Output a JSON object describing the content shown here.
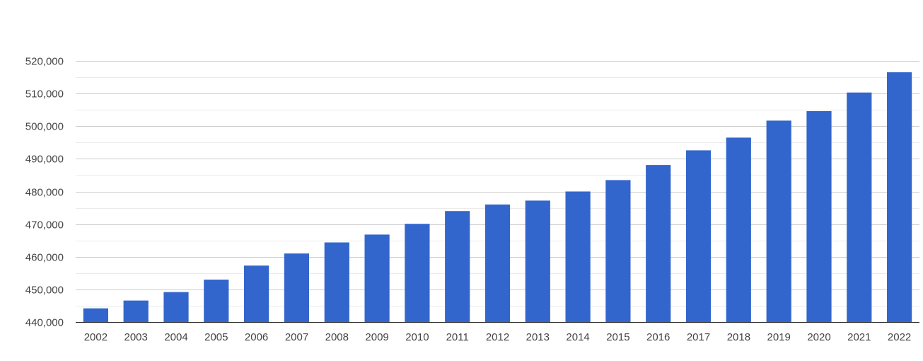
{
  "chart_data": {
    "type": "bar",
    "categories": [
      "2002",
      "2003",
      "2004",
      "2005",
      "2006",
      "2007",
      "2008",
      "2009",
      "2010",
      "2011",
      "2012",
      "2013",
      "2014",
      "2015",
      "2016",
      "2017",
      "2018",
      "2019",
      "2020",
      "2021",
      "2022"
    ],
    "series": [
      {
        "values": [
          444200,
          446600,
          449200,
          453000,
          457300,
          461000,
          464400,
          466800,
          470100,
          474000,
          476000,
          477200,
          480000,
          483500,
          488100,
          492600,
          496500,
          501700,
          504600,
          510300,
          516500
        ],
        "color": "#3366cc"
      }
    ],
    "ylim": [
      440000,
      520000
    ],
    "y_ticks": [
      "440,000",
      "450,000",
      "460,000",
      "470,000",
      "480,000",
      "490,000",
      "500,000",
      "510,000",
      "520,000"
    ],
    "y_tick_values": [
      440000,
      450000,
      460000,
      470000,
      480000,
      490000,
      500000,
      510000,
      520000
    ],
    "minor_gridlines": true,
    "grid": true,
    "legend": "none"
  }
}
